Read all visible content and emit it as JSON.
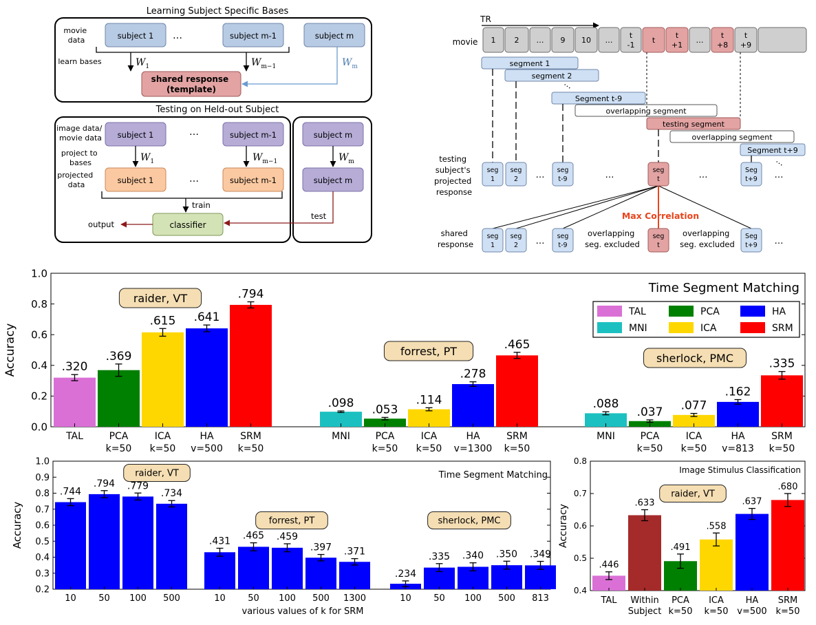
{
  "diagram_left": {
    "title_learning": "Learning Subject Specific Bases",
    "title_testing": "Testing on Held-out Subject",
    "movie_data": [
      "movie",
      "data"
    ],
    "learn_bases": "learn bases",
    "image_movie_data": [
      "image data/",
      "movie data"
    ],
    "project_to_bases": [
      "project to",
      "bases"
    ],
    "projected_data": [
      "projected",
      "data"
    ],
    "subject_1": "subject 1",
    "subject_m1": "subject m-1",
    "subject_m": "subject m",
    "dots": "…",
    "w1": "W",
    "w1_sub": "1",
    "wm1": "W",
    "wm1_sub": "m−1",
    "wm": "W",
    "wm_sub": "m",
    "shared_response": [
      "shared response",
      "(template)"
    ],
    "train": "train",
    "test": "test",
    "classifier": "classifier",
    "output": "output"
  },
  "diagram_right": {
    "tr": "TR",
    "movie": "movie",
    "timeline": [
      [
        "1"
      ],
      [
        "2"
      ],
      [
        "…"
      ],
      [
        "9"
      ],
      [
        "10"
      ],
      [
        "…"
      ],
      [
        "t",
        "-1"
      ],
      [
        "t"
      ],
      [
        "t",
        "+1"
      ],
      [
        "…"
      ],
      [
        "t",
        "+8"
      ],
      [
        "t",
        "+9"
      ],
      [
        ""
      ]
    ],
    "segment_1": "segment 1",
    "segment_2": "segment 2",
    "segment_dots": "…",
    "segment_t9": "Segment t-9",
    "overlapping_segment": "overlapping segment",
    "testing_segment": "testing segment",
    "segment_t_plus_9": "Segment t+9",
    "testing_label": [
      "testing",
      "subject's",
      "projected",
      "response"
    ],
    "seg_1": [
      "seg",
      "1"
    ],
    "seg_2": [
      "seg",
      "2"
    ],
    "seg_t9": [
      "seg",
      "t-9"
    ],
    "seg_t": [
      "seg",
      "t"
    ],
    "seg_t_plus_9": [
      "Seg",
      "t+9"
    ],
    "dots": "…",
    "max_correlation": "Max Correlation",
    "shared_label": [
      "shared",
      "response"
    ],
    "excluded": [
      "overlapping",
      "seg. excluded"
    ]
  },
  "colors": {
    "TAL": "#da70d6",
    "MNI": "#1cc0c0",
    "PCA": "#008000",
    "ICA": "#ffd700",
    "HA": "#0000ff",
    "SRM": "#ff0000",
    "Within": "#a52a2a",
    "tag_bg": "#f5deb3"
  },
  "chart_data": [
    {
      "type": "bar",
      "title": "Time Segment Matching",
      "ylabel": "Accuracy",
      "ylim": [
        0,
        1.0
      ],
      "yticks": [
        "0.0",
        "0.2",
        "0.4",
        "0.6",
        "0.8",
        "1.0"
      ],
      "grid": false,
      "legend_position": "upper-right",
      "legend": [
        {
          "name": "TAL",
          "color": "#da70d6"
        },
        {
          "name": "PCA",
          "color": "#008000"
        },
        {
          "name": "HA",
          "color": "#0000ff"
        },
        {
          "name": "MNI",
          "color": "#1cc0c0"
        },
        {
          "name": "ICA",
          "color": "#ffd700"
        },
        {
          "name": "SRM",
          "color": "#ff0000"
        }
      ],
      "groups": [
        {
          "tag": "raider, VT",
          "bars": [
            {
              "label": [
                "TAL",
                ""
              ],
              "method": "TAL",
              "value": 0.32,
              "text": ".320",
              "err": 0.02
            },
            {
              "label": [
                "PCA",
                "k=50"
              ],
              "method": "PCA",
              "value": 0.369,
              "text": ".369",
              "err": 0.04
            },
            {
              "label": [
                "ICA",
                "k=50"
              ],
              "method": "ICA",
              "value": 0.615,
              "text": ".615",
              "err": 0.025
            },
            {
              "label": [
                "HA",
                "v=500"
              ],
              "method": "HA",
              "value": 0.641,
              "text": ".641",
              "err": 0.022
            },
            {
              "label": [
                "SRM",
                "k=50"
              ],
              "method": "SRM",
              "value": 0.794,
              "text": ".794",
              "err": 0.02
            }
          ]
        },
        {
          "tag": "forrest, PT",
          "bars": [
            {
              "label": [
                "MNI",
                ""
              ],
              "method": "MNI",
              "value": 0.098,
              "text": ".098",
              "err": 0.005
            },
            {
              "label": [
                "PCA",
                "k=50"
              ],
              "method": "PCA",
              "value": 0.053,
              "text": ".053",
              "err": 0.008
            },
            {
              "label": [
                "ICA",
                "k=50"
              ],
              "method": "ICA",
              "value": 0.114,
              "text": ".114",
              "err": 0.01
            },
            {
              "label": [
                "HA",
                "v=1300"
              ],
              "method": "HA",
              "value": 0.278,
              "text": ".278",
              "err": 0.015
            },
            {
              "label": [
                "SRM",
                "k=50"
              ],
              "method": "SRM",
              "value": 0.465,
              "text": ".465",
              "err": 0.02
            }
          ]
        },
        {
          "tag": "sherlock, PMC",
          "bars": [
            {
              "label": [
                "MNI",
                ""
              ],
              "method": "MNI",
              "value": 0.088,
              "text": ".088",
              "err": 0.01
            },
            {
              "label": [
                "PCA",
                "k=50"
              ],
              "method": "PCA",
              "value": 0.037,
              "text": ".037",
              "err": 0.008
            },
            {
              "label": [
                "ICA",
                "k=50"
              ],
              "method": "ICA",
              "value": 0.077,
              "text": ".077",
              "err": 0.01
            },
            {
              "label": [
                "HA",
                "v=813"
              ],
              "method": "HA",
              "value": 0.162,
              "text": ".162",
              "err": 0.015
            },
            {
              "label": [
                "SRM",
                "k=50"
              ],
              "method": "SRM",
              "value": 0.335,
              "text": ".335",
              "err": 0.025
            }
          ]
        }
      ]
    },
    {
      "type": "bar",
      "title": "Time Segment Matching",
      "ylabel": "Accuracy",
      "xlabel": "various values of k for SRM",
      "ylim": [
        0.2,
        1.0
      ],
      "yticks": [
        "0.2",
        "0.3",
        "0.4",
        "0.5",
        "0.6",
        "0.7",
        "0.8",
        "0.9",
        "1.0"
      ],
      "color": "#0000ff",
      "groups": [
        {
          "tag": "raider, VT",
          "bars": [
            {
              "label": "10",
              "value": 0.744,
              "text": ".744",
              "err": 0.022
            },
            {
              "label": "50",
              "value": 0.794,
              "text": ".794",
              "err": 0.022
            },
            {
              "label": "100",
              "value": 0.779,
              "text": ".779",
              "err": 0.022
            },
            {
              "label": "500",
              "value": 0.734,
              "text": ".734",
              "err": 0.02
            }
          ]
        },
        {
          "tag": "forrest, PT",
          "bars": [
            {
              "label": "10",
              "value": 0.431,
              "text": ".431",
              "err": 0.025
            },
            {
              "label": "50",
              "value": 0.465,
              "text": ".465",
              "err": 0.025
            },
            {
              "label": "100",
              "value": 0.459,
              "text": ".459",
              "err": 0.025
            },
            {
              "label": "500",
              "value": 0.397,
              "text": ".397",
              "err": 0.02
            },
            {
              "label": "1300",
              "value": 0.371,
              "text": ".371",
              "err": 0.02
            }
          ]
        },
        {
          "tag": "sherlock, PMC",
          "bars": [
            {
              "label": "10",
              "value": 0.234,
              "text": ".234",
              "err": 0.018
            },
            {
              "label": "50",
              "value": 0.335,
              "text": ".335",
              "err": 0.025
            },
            {
              "label": "100",
              "value": 0.34,
              "text": ".340",
              "err": 0.025
            },
            {
              "label": "500",
              "value": 0.35,
              "text": ".350",
              "err": 0.025
            },
            {
              "label": "813",
              "value": 0.349,
              "text": ".349",
              "err": 0.025
            }
          ]
        }
      ]
    },
    {
      "type": "bar",
      "title": "Image Stimulus Classification",
      "ylabel": "Accuracy",
      "ylim": [
        0.4,
        0.8
      ],
      "yticks": [
        "0.4",
        "0.5",
        "0.6",
        "0.7",
        "0.8"
      ],
      "tag": "raider, VT",
      "bars": [
        {
          "label": [
            "TAL",
            ""
          ],
          "method": "TAL",
          "value": 0.446,
          "text": ".446",
          "err": 0.012
        },
        {
          "label": [
            "Within",
            "Subject"
          ],
          "method": "Within",
          "value": 0.633,
          "text": ".633",
          "err": 0.017
        },
        {
          "label": [
            "PCA",
            "k=50"
          ],
          "method": "PCA",
          "value": 0.491,
          "text": ".491",
          "err": 0.022
        },
        {
          "label": [
            "ICA",
            "k=50"
          ],
          "method": "ICA",
          "value": 0.558,
          "text": ".558",
          "err": 0.02
        },
        {
          "label": [
            "HA",
            "v=500"
          ],
          "method": "HA",
          "value": 0.637,
          "text": ".637",
          "err": 0.017
        },
        {
          "label": [
            "SRM",
            "k=50"
          ],
          "method": "SRM",
          "value": 0.68,
          "text": ".680",
          "err": 0.02
        }
      ]
    }
  ]
}
